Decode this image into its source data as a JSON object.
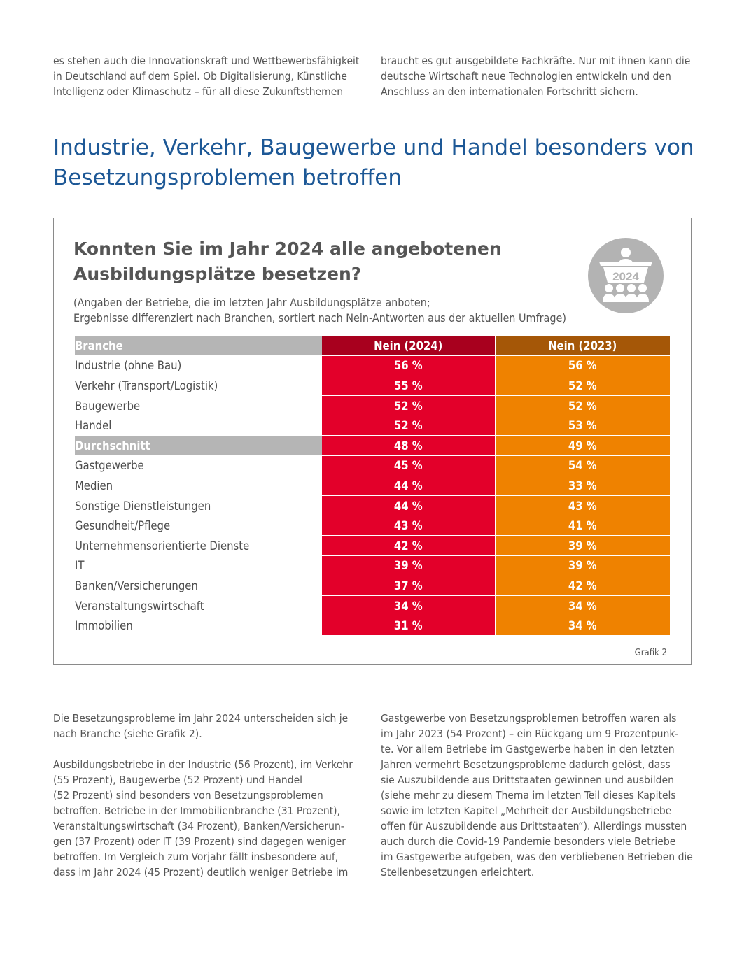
{
  "intro": {
    "left_lines": [
      "es stehen auch die Innovationskraft und Wettbewerbsfähigkeit",
      "in Deutschland auf dem Spiel. Ob Digitalisierung, Künstliche",
      "Intelligenz oder Klimaschutz – für all diese Zukunftsthemen"
    ],
    "right_lines": [
      "braucht es gut ausgebildete Fachkräfte. Nur mit ihnen kann die",
      "deutsche Wirtschaft neue Technologien entwickeln und den",
      "Anschluss an den internationalen Fortschritt sichern."
    ]
  },
  "section_heading": {
    "line1": "Industrie, Verkehr, Baugewerbe und Handel besonders von",
    "line2": "Besetzungsproblemen betroffen"
  },
  "figure": {
    "question_line1": "Konnten Sie im Jahr 2024 alle angebotenen",
    "question_line2": "Ausbildungsplätze besetzen?",
    "subtitle_line1": "(Angaben der Betriebe, die im letzten Jahr Ausbildungsplätze anboten;",
    "subtitle_line2": "Ergebnisse differenziert nach Branchen, sortiert nach Nein-Antworten aus der aktuellen Umfrage)",
    "badge_year": "2024",
    "badge_icon": "people-meeting-icon",
    "label": "Grafik 2"
  },
  "table": {
    "headers": [
      "Branche",
      "Nein (2024)",
      "Nein (2023)"
    ],
    "rows": [
      {
        "branch": "Industrie (ohne Bau)",
        "y2024": "56 %",
        "y2023": "56 %"
      },
      {
        "branch": "Verkehr (Transport/Logistik)",
        "y2024": "55 %",
        "y2023": "52 %"
      },
      {
        "branch": "Baugewerbe",
        "y2024": "52 %",
        "y2023": "52 %"
      },
      {
        "branch": "Handel",
        "y2024": "52 %",
        "y2023": "53 %"
      },
      {
        "branch": "Durchschnitt",
        "y2024": "48 %",
        "y2023": "49 %"
      },
      {
        "branch": "Gastgewerbe",
        "y2024": "45 %",
        "y2023": "54 %"
      },
      {
        "branch": "Medien",
        "y2024": "44 %",
        "y2023": "33 %"
      },
      {
        "branch": "Sonstige Dienstleistungen",
        "y2024": "44 %",
        "y2023": "43 %"
      },
      {
        "branch": "Gesundheit/Pflege",
        "y2024": "43 %",
        "y2023": "41 %"
      },
      {
        "branch": "Unternehmensorientierte Dienste",
        "y2024": "42 %",
        "y2023": "39 %"
      },
      {
        "branch": "IT",
        "y2024": "39 %",
        "y2023": "39 %"
      },
      {
        "branch": "Banken/Versicherungen",
        "y2024": "37 %",
        "y2023": "42 %"
      },
      {
        "branch": "Veranstaltungswirtschaft",
        "y2024": "34 %",
        "y2023": "34 %"
      },
      {
        "branch": "Immobilien",
        "y2024": "31 %",
        "y2023": "34 %"
      }
    ]
  },
  "body": {
    "left_p1_lines": [
      "Die Besetzungsprobleme im Jahr 2024 unterscheiden sich je",
      "nach Branche (siehe Grafik 2)."
    ],
    "left_p2_lines": [
      "Ausbildungsbetriebe in der Industrie (56 Prozent), im Verkehr",
      "(55 Prozent), Baugewerbe (52 Prozent) und Handel",
      "(52 Prozent) sind besonders von Besetzungsproblemen",
      "betroffen. Betriebe in der Immobilienbranche (31 Prozent),",
      "Veranstaltungswirtschaft (34 Prozent), Banken/Versicherun-",
      "gen (37 Prozent) oder IT (39 Prozent) sind dagegen weniger",
      "betroffen. Im Vergleich zum Vorjahr fällt insbesondere auf,",
      "dass im Jahr 2024 (45 Prozent) deutlich weniger Betriebe im"
    ],
    "right_lines": [
      "Gastgewerbe von Besetzungsproblemen betroffen waren als",
      "im Jahr 2023 (54 Prozent) – ein Rückgang um 9 Prozentpunk-",
      "te. Vor allem Betriebe im Gastgewerbe haben in den letzten",
      "Jahren vermehrt Besetzungsprobleme dadurch gelöst, dass",
      "sie Auszubildende aus Drittstaaten gewinnen und ausbilden",
      "(siehe mehr zu diesem Thema im letzten Teil dieses Kapitels",
      "sowie im letzten Kapitel „Mehrheit der Ausbildungsbetriebe",
      "offen für Auszubildende aus Drittstaaten“). Allerdings mussten",
      "auch durch die Covid-19 Pandemie besonders viele Betriebe",
      "im Gastgewerbe aufgeben, was den verbliebenen Betrieben die",
      "Stellenbesetzungen erleichtert."
    ]
  },
  "colors": {
    "heading_blue": "#1d5896",
    "header_2024": "#a8001e",
    "cell_2024": "#e3002a",
    "header_2023": "#a55707",
    "cell_2023": "#ef8200",
    "branch_header_gray": "#b5b5b5",
    "badge_gray": "#b3b3b3"
  }
}
